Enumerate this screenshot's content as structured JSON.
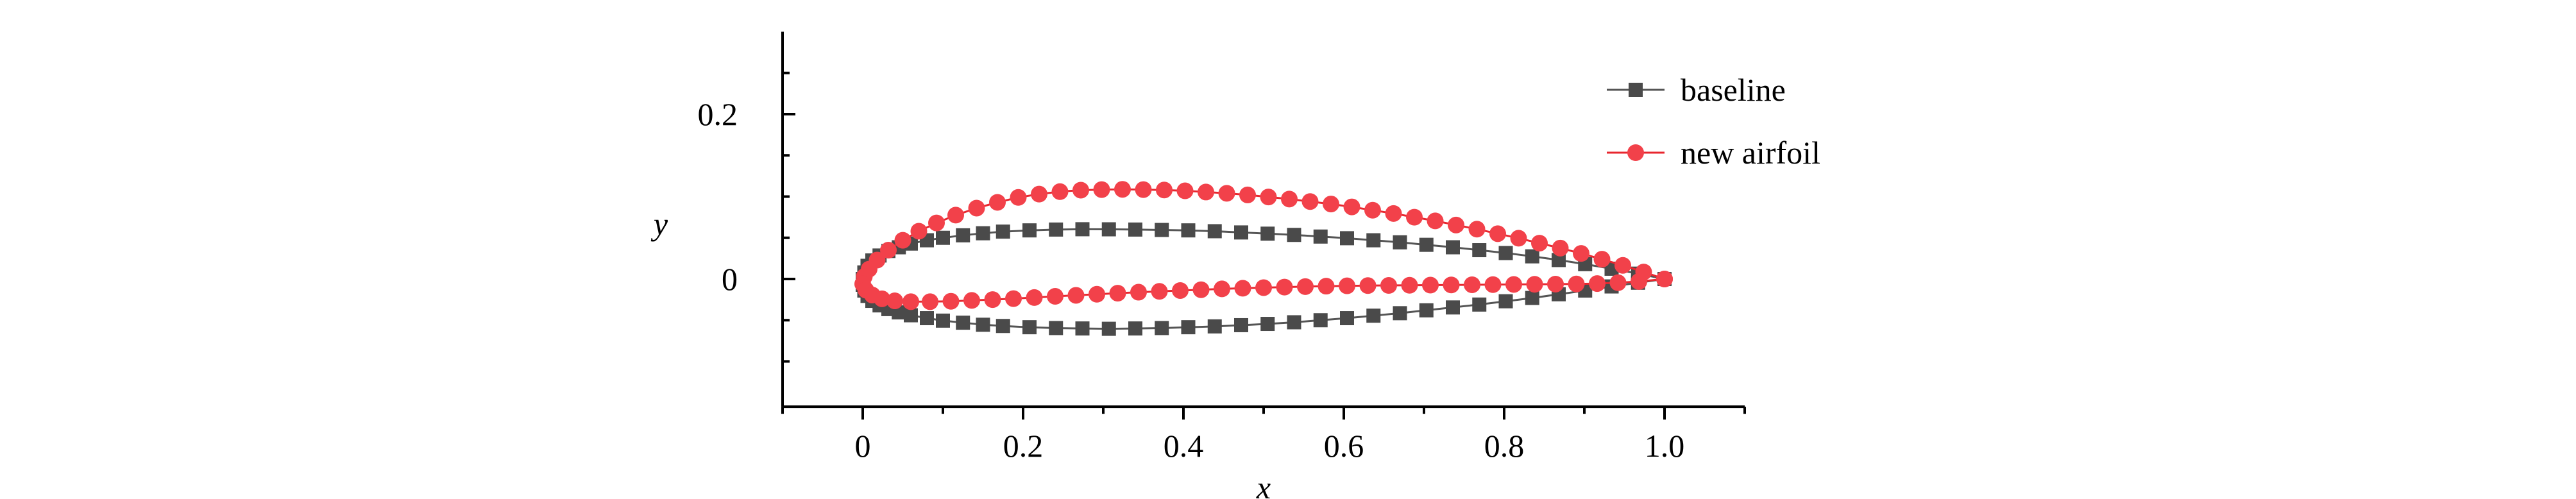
{
  "chart_data": {
    "type": "line",
    "title": "",
    "xlabel": "x",
    "ylabel": "y",
    "xlim": [
      -0.1,
      1.1
    ],
    "ylim": [
      -0.155,
      0.3
    ],
    "x_ticks": [
      0,
      0.2,
      0.4,
      0.6,
      0.8,
      1.0
    ],
    "x_tick_labels": [
      "0",
      "0.2",
      "0.4",
      "0.6",
      "0.8",
      "1.0"
    ],
    "y_ticks": [
      0,
      0.2
    ],
    "y_tick_labels": [
      "0",
      "0.2"
    ],
    "legend_position": "top-right",
    "grid": false,
    "series": [
      {
        "name": "baseline",
        "color": "#4a4a4a",
        "line_color": "#555555",
        "marker": "square",
        "x": [
          1.0,
          0.967,
          0.934,
          0.901,
          0.868,
          0.835,
          0.802,
          0.769,
          0.736,
          0.703,
          0.67,
          0.637,
          0.604,
          0.571,
          0.538,
          0.505,
          0.472,
          0.439,
          0.406,
          0.373,
          0.34,
          0.307,
          0.274,
          0.241,
          0.208,
          0.175,
          0.15,
          0.125,
          0.1,
          0.08,
          0.06,
          0.045,
          0.032,
          0.021,
          0.012,
          0.006,
          0.002,
          0.0,
          0.0,
          0.002,
          0.006,
          0.012,
          0.021,
          0.032,
          0.045,
          0.06,
          0.08,
          0.1,
          0.125,
          0.15,
          0.175,
          0.208,
          0.241,
          0.274,
          0.307,
          0.34,
          0.373,
          0.406,
          0.439,
          0.472,
          0.505,
          0.538,
          0.571,
          0.604,
          0.637,
          0.67,
          0.703,
          0.736,
          0.769,
          0.802,
          0.835,
          0.868,
          0.901,
          0.934,
          0.967,
          1.0
        ],
        "y": [
          0.0,
          0.0065,
          0.0125,
          0.018,
          0.023,
          0.0275,
          0.0315,
          0.035,
          0.0385,
          0.0415,
          0.0445,
          0.047,
          0.0495,
          0.0515,
          0.0535,
          0.055,
          0.0565,
          0.058,
          0.059,
          0.0595,
          0.06,
          0.0603,
          0.0604,
          0.06,
          0.059,
          0.0575,
          0.0555,
          0.053,
          0.05,
          0.047,
          0.043,
          0.0385,
          0.034,
          0.0285,
          0.0225,
          0.016,
          0.008,
          0.0,
          -0.007,
          -0.014,
          -0.0205,
          -0.0265,
          -0.032,
          -0.0365,
          -0.0405,
          -0.044,
          -0.0475,
          -0.0505,
          -0.053,
          -0.0555,
          -0.057,
          -0.0585,
          -0.0595,
          -0.06,
          -0.0604,
          -0.06,
          -0.0595,
          -0.0585,
          -0.0575,
          -0.056,
          -0.0545,
          -0.0525,
          -0.05,
          -0.0475,
          -0.0445,
          -0.0415,
          -0.038,
          -0.0345,
          -0.031,
          -0.027,
          -0.023,
          -0.0185,
          -0.014,
          -0.009,
          -0.0045,
          0.0
        ]
      },
      {
        "name": "new airfoil",
        "color": "#f2414a",
        "line_color": "#e8262e",
        "marker": "circle",
        "x": [
          1.0,
          0.974,
          0.948,
          0.922,
          0.896,
          0.87,
          0.844,
          0.818,
          0.792,
          0.766,
          0.74,
          0.714,
          0.688,
          0.662,
          0.636,
          0.61,
          0.584,
          0.558,
          0.532,
          0.506,
          0.48,
          0.454,
          0.428,
          0.402,
          0.376,
          0.35,
          0.324,
          0.298,
          0.272,
          0.246,
          0.22,
          0.194,
          0.168,
          0.142,
          0.116,
          0.092,
          0.07,
          0.05,
          0.032,
          0.018,
          0.008,
          0.002,
          0.0,
          0.004,
          0.012,
          0.024,
          0.04,
          0.06,
          0.084,
          0.11,
          0.136,
          0.162,
          0.188,
          0.214,
          0.24,
          0.266,
          0.292,
          0.318,
          0.344,
          0.37,
          0.396,
          0.422,
          0.448,
          0.474,
          0.5,
          0.526,
          0.552,
          0.578,
          0.604,
          0.63,
          0.656,
          0.682,
          0.708,
          0.734,
          0.76,
          0.786,
          0.812,
          0.838,
          0.864,
          0.89,
          0.916,
          0.942,
          0.968,
          1.0
        ],
        "y": [
          0.0,
          0.0085,
          0.0165,
          0.024,
          0.031,
          0.0375,
          0.0435,
          0.0495,
          0.055,
          0.0605,
          0.0655,
          0.0705,
          0.075,
          0.0795,
          0.0835,
          0.0875,
          0.091,
          0.094,
          0.097,
          0.0995,
          0.102,
          0.104,
          0.1055,
          0.107,
          0.108,
          0.1085,
          0.1088,
          0.1085,
          0.1078,
          0.106,
          0.103,
          0.099,
          0.093,
          0.086,
          0.0775,
          0.068,
          0.058,
          0.047,
          0.035,
          0.023,
          0.012,
          0.003,
          -0.006,
          -0.0135,
          -0.0195,
          -0.024,
          -0.0265,
          -0.0275,
          -0.0275,
          -0.027,
          -0.026,
          -0.025,
          -0.0238,
          -0.0225,
          -0.021,
          -0.0198,
          -0.0185,
          -0.0172,
          -0.016,
          -0.015,
          -0.014,
          -0.013,
          -0.012,
          -0.0112,
          -0.0105,
          -0.0098,
          -0.0092,
          -0.0087,
          -0.0083,
          -0.008,
          -0.0078,
          -0.0076,
          -0.0074,
          -0.0072,
          -0.007,
          -0.0068,
          -0.0066,
          -0.0064,
          -0.0062,
          -0.006,
          -0.0055,
          -0.0045,
          -0.003,
          0.0
        ]
      }
    ]
  }
}
